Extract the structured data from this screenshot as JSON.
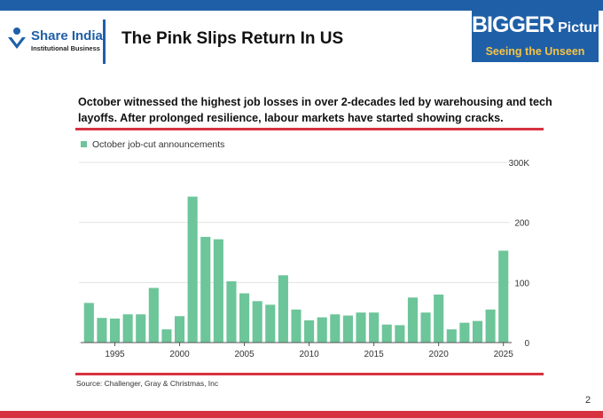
{
  "header": {
    "logo_name": "Share India",
    "logo_sub": "Institutional Business",
    "title": "The Pink Slips Return In US",
    "badge_big": "BIGGER",
    "badge_picture": "Picture",
    "badge_tagline": "Seeing the Unseen"
  },
  "subtitle": "October witnessed the highest job losses in over 2-decades led by  warehousing and tech layoffs. After prolonged resilience, labour markets have started showing cracks.",
  "source": "Source: Challenger, Gray & Christmas, Inc",
  "page_number": "2",
  "colors": {
    "brand_blue": "#1f5fa8",
    "accent_red": "#d63240",
    "badge_yellow": "#f6c343",
    "bar_green": "#6dc59a"
  },
  "icons": {
    "logo": "share-india-logo-icon",
    "legend": "legend-swatch-icon"
  },
  "chart_data": {
    "type": "bar",
    "title": "",
    "xlabel": "",
    "ylabel": "",
    "legend": "October job-cut announcements",
    "legend_position": "top-left",
    "y_axis_side": "right",
    "grid": true,
    "ylim": [
      0,
      300
    ],
    "y_ticks": [
      0,
      100,
      200,
      300
    ],
    "y_tick_labels": [
      "0",
      "100",
      "200",
      "300K"
    ],
    "x_ticks": [
      1995,
      2000,
      2005,
      2010,
      2015,
      2020,
      2025
    ],
    "x_tick_labels": [
      "1995",
      "2000",
      "2005",
      "2010",
      "2015",
      "2020",
      "2025"
    ],
    "categories": [
      1993,
      1994,
      1995,
      1996,
      1997,
      1998,
      1999,
      2000,
      2001,
      2002,
      2003,
      2004,
      2005,
      2006,
      2007,
      2008,
      2009,
      2010,
      2011,
      2012,
      2013,
      2014,
      2015,
      2016,
      2017,
      2018,
      2019,
      2020,
      2021,
      2022,
      2023,
      2024,
      2025
    ],
    "values": [
      66,
      41,
      40,
      47,
      47,
      91,
      22,
      44,
      243,
      176,
      172,
      102,
      82,
      69,
      63,
      112,
      55,
      37,
      42,
      47,
      45,
      50,
      50,
      30,
      29,
      75,
      50,
      80,
      22,
      33,
      36,
      55,
      153
    ]
  }
}
